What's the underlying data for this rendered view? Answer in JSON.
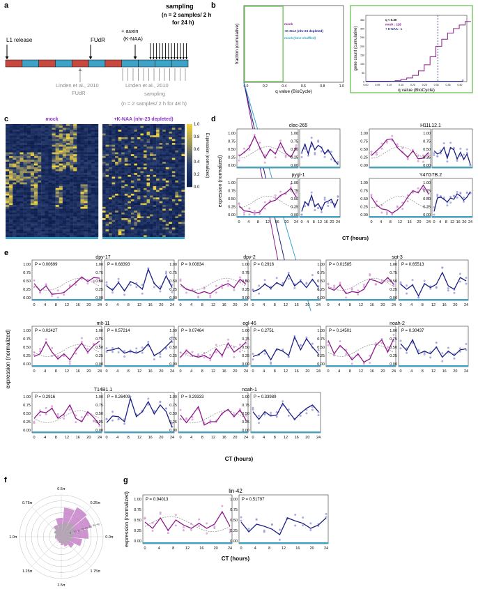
{
  "colors": {
    "mock": "#8b1a89",
    "knaa": "#1a1f80",
    "mockPt": "#d79ad4",
    "knaaPt": "#9a9ad8",
    "teal": "#3aa5c9",
    "red": "#c84840",
    "blue": "#3ea2c8",
    "green": "#7bc86a",
    "grey": "#999999"
  },
  "panel_letters": {
    "a": "a",
    "b": "b",
    "c": "c",
    "d": "d",
    "e": "e",
    "f": "f",
    "g": "g"
  },
  "panel_a": {
    "l1": "L1 release",
    "fudr": "FUdR",
    "auxin1": "+ auxin",
    "auxin2": "(K-NAA)",
    "sampling_top": [
      "sampling",
      "(n = 2 samples/ 2 h",
      "for 24 h)"
    ],
    "linden_top": "Linden et al., 2010",
    "fudr_grey": "FUdR",
    "linden_bottom": "Linden et al., 2010",
    "sampling_grey": "sampling",
    "sampling_grey2": "(n = 2 samples/ 2 h for 48 h)"
  },
  "chart_data": [
    {
      "panel": "b-left",
      "type": "line",
      "xlabel": "q value (BioCycle)",
      "ylabel": "fraction (cumulative)",
      "xticks": [
        "0.0",
        "0.2",
        "0.4",
        "0.6",
        "0.8",
        "1.0"
      ],
      "xlim": [
        0,
        1
      ],
      "legend": [
        "mock",
        "+K-NAA (nhr-23 depleted)",
        "mock (time-shuffled)"
      ],
      "legend_position": "top-left"
    },
    {
      "panel": "b-right",
      "type": "line",
      "xlabel": "q value (BioCycle)",
      "ylabel": "gene count (cumulative)",
      "xticks": [
        "0.00",
        "0.05",
        "0.10",
        "0.15",
        "0.20",
        "0.25",
        "0.30",
        "0.35",
        "0.40"
      ],
      "yticks": [
        "0",
        "50",
        "100",
        "150",
        "200",
        "250",
        "300",
        "350"
      ],
      "legend": [
        "q < 0.30",
        "mock : 228",
        "+ K-NAA : 1"
      ],
      "threshold": 0.3
    },
    {
      "panel": "c",
      "type": "heatmap",
      "titles": [
        "mock",
        "+K-NAA (nhr-23 depleted)"
      ],
      "colorbar_label": "Expression (normalized)",
      "colorbar_ticks": [
        "1.0",
        "0.8",
        "0.6",
        "0.4",
        "0.2",
        "0.0"
      ],
      "vmin": 0,
      "vmax": 1
    },
    {
      "panel": "d",
      "type": "line",
      "xlabel": "CT (hours)",
      "ylabel": "expression (normalized)",
      "xticks": [
        "0",
        "4",
        "8",
        "12",
        "16",
        "20",
        "24"
      ],
      "yticks": [
        "0.00",
        "0.25",
        "0.50",
        "0.75",
        "1.00"
      ],
      "genes": [
        {
          "name": "clec-265",
          "mock": [
            0.28,
            0.4,
            0.55,
            0.9,
            0.55,
            0.22,
            0.5,
            0.35,
            0.7,
            0.38,
            0.25,
            0.55
          ],
          "knaa": [
            0.4,
            0.65,
            0.35,
            0.72,
            0.48,
            0.62,
            0.55,
            0.35,
            0.48,
            0.32,
            0.15,
            0.02
          ]
        },
        {
          "name": "H11L12.1",
          "mock": [
            0.3,
            0.45,
            0.6,
            0.8,
            0.82,
            0.55,
            0.4,
            0.25,
            0.45,
            0.2,
            0.22,
            0.4
          ],
          "knaa": [
            0.45,
            0.35,
            0.4,
            0.55,
            0.22,
            0.55,
            0.48,
            0.2,
            0.4,
            0.18,
            0.35,
            0.02
          ]
        },
        {
          "name": "pygl-1",
          "mock": [
            0.28,
            0.12,
            0.1,
            0.05,
            0.08,
            0.28,
            0.4,
            0.45,
            0.6,
            0.68,
            0.82,
            0.55
          ],
          "knaa": [
            0.1,
            0.4,
            0.3,
            0.6,
            0.25,
            0.35,
            0.15,
            0.38,
            0.42,
            0.48,
            0.25,
            0.48
          ]
        },
        {
          "name": "Y47G7B.2",
          "mock": [
            0.55,
            0.3,
            0.18,
            0.15,
            0.05,
            0.15,
            0.3,
            0.55,
            0.75,
            0.68,
            0.92,
            0.65
          ],
          "knaa": [
            0.1,
            0.52,
            0.55,
            0.48,
            0.4,
            0.52,
            0.48,
            0.65,
            0.58,
            0.45,
            0.55,
            0.72
          ]
        }
      ]
    },
    {
      "panel": "e",
      "type": "line",
      "xlabel": "CT (hours)",
      "ylabel": "expression (normalized)",
      "xticks": [
        "0",
        "4",
        "8",
        "12",
        "16",
        "20",
        "24"
      ],
      "yticks": [
        "0.00",
        "0.25",
        "0.50",
        "0.75",
        "1.00"
      ],
      "genes": [
        {
          "name": "dpy-17",
          "p_mock": "P = 0.00699",
          "p_knaa": "P = 0.68393",
          "mock": [
            0.42,
            0.2,
            0.35,
            0.1,
            0.12,
            0.15,
            0.3,
            0.45,
            0.62,
            0.48,
            0.6,
            0.58
          ],
          "knaa": [
            0.35,
            0.22,
            0.45,
            0.2,
            0.48,
            0.4,
            0.25,
            0.85,
            0.42,
            0.25,
            0.65,
            0.3
          ]
        },
        {
          "name": "dpy-2",
          "p_mock": "P = 0.00834",
          "p_knaa": "P = 0.2916",
          "mock": [
            0.4,
            0.25,
            0.2,
            0.12,
            0.18,
            0.12,
            0.25,
            0.35,
            0.42,
            0.3,
            0.55,
            0.4
          ],
          "knaa": [
            0.18,
            0.25,
            0.4,
            0.28,
            0.45,
            0.35,
            0.7,
            0.35,
            0.5,
            0.3,
            0.55,
            0.3
          ]
        },
        {
          "name": "sqt-3",
          "p_mock": "P = 0.01585",
          "p_knaa": "P = 0.65513",
          "mock": [
            0.3,
            0.22,
            0.38,
            0.12,
            0.18,
            0.15,
            0.25,
            0.55,
            0.5,
            0.42,
            0.6,
            0.4
          ],
          "knaa": [
            0.4,
            0.25,
            0.38,
            0.05,
            0.42,
            0.3,
            0.4,
            0.75,
            0.35,
            0.25,
            0.6,
            0.5
          ]
        },
        {
          "name": "mlt-11",
          "p_mock": "P = 0.02427",
          "p_knaa": "P = 0.57214",
          "mock": [
            0.22,
            0.3,
            0.65,
            0.35,
            0.15,
            0.3,
            0.12,
            0.4,
            0.62,
            0.35,
            0.55,
            0.68
          ],
          "knaa": [
            0.4,
            0.42,
            0.48,
            0.32,
            0.38,
            0.32,
            0.4,
            0.6,
            0.25,
            0.35,
            0.52,
            0.7
          ]
        },
        {
          "name": "egl-46",
          "p_mock": "P = 0.07464",
          "p_knaa": "P = 0.2751",
          "mock": [
            0.2,
            0.4,
            0.25,
            0.2,
            0.25,
            0.15,
            0.45,
            0.25,
            0.62,
            0.35,
            0.48,
            0.65
          ],
          "knaa": [
            0.22,
            0.28,
            0.42,
            0.12,
            0.45,
            0.38,
            0.25,
            0.8,
            0.42,
            0.75,
            0.5,
            0.3
          ]
        },
        {
          "name": "noah-2",
          "p_mock": "P = 0.14501",
          "p_knaa": "P = 0.30437",
          "mock": [
            0.7,
            0.3,
            0.55,
            0.38,
            0.12,
            0.3,
            0.05,
            0.15,
            0.55,
            0.72,
            0.35,
            0.75
          ],
          "knaa": [
            0.6,
            0.4,
            0.72,
            0.3,
            0.38,
            0.3,
            0.5,
            0.2,
            0.38,
            0.25,
            0.42,
            0.45
          ]
        },
        {
          "name": "T14B1.1",
          "p_mock": "P = 0.2916",
          "p_knaa": "P = 0.26409",
          "mock": [
            0.35,
            0.55,
            0.52,
            0.65,
            0.35,
            0.48,
            0.75,
            0.35,
            0.25,
            0.55,
            0.38,
            0.15
          ],
          "knaa": [
            0.22,
            0.42,
            0.4,
            0.25,
            0.95,
            0.4,
            0.55,
            0.85,
            0.48,
            0.75,
            0.55,
            0.08
          ]
        },
        {
          "name": "noah-1",
          "p_mock": "P = 0.29333",
          "p_knaa": "P = 0.33989",
          "mock": [
            0.45,
            0.22,
            0.45,
            0.7,
            0.15,
            0.25,
            0.25,
            0.5,
            0.62,
            0.4,
            0.6,
            0.3
          ],
          "knaa": [
            0.55,
            0.32,
            0.55,
            0.42,
            0.45,
            0.8,
            0.55,
            0.32,
            0.5,
            0.65,
            0.75,
            0.55
          ]
        }
      ]
    },
    {
      "panel": "f",
      "type": "polar-histogram",
      "angle_labels": [
        "0.0π",
        "0.25π",
        "0.5π",
        "0.75π",
        "1.0π",
        "1.25π",
        "1.5π",
        "1.75π"
      ],
      "radial_ticks": [
        "5",
        "10",
        "15",
        "20",
        "25",
        "30",
        "35",
        "40"
      ],
      "mock": [
        5,
        6,
        5,
        8,
        12,
        18,
        28,
        32,
        30,
        26,
        20,
        14,
        10,
        8,
        6,
        5
      ],
      "knaa": [
        3,
        5,
        6,
        8,
        10,
        12,
        14,
        16,
        14,
        12,
        10,
        9,
        8,
        6,
        5,
        4
      ]
    },
    {
      "panel": "g",
      "type": "line",
      "title": "lin-42",
      "xlabel": "CT (hours)",
      "ylabel": "expression (normalized)",
      "xticks": [
        "0",
        "4",
        "8",
        "12",
        "16",
        "20",
        "24"
      ],
      "yticks": [
        "0.00",
        "0.25",
        "0.50",
        "0.75",
        "1.00"
      ],
      "p_mock": "P = 0.94013",
      "p_knaa": "P = 0.51797",
      "mock": [
        0.45,
        0.3,
        0.55,
        0.25,
        0.5,
        0.38,
        0.3,
        0.42,
        0.3,
        0.4,
        0.7,
        0.35
      ],
      "knaa": [
        0.45,
        0.22,
        0.4,
        0.35,
        0.28,
        0.15,
        0.55,
        0.48,
        0.42,
        0.3,
        0.38,
        0.55
      ]
    }
  ]
}
